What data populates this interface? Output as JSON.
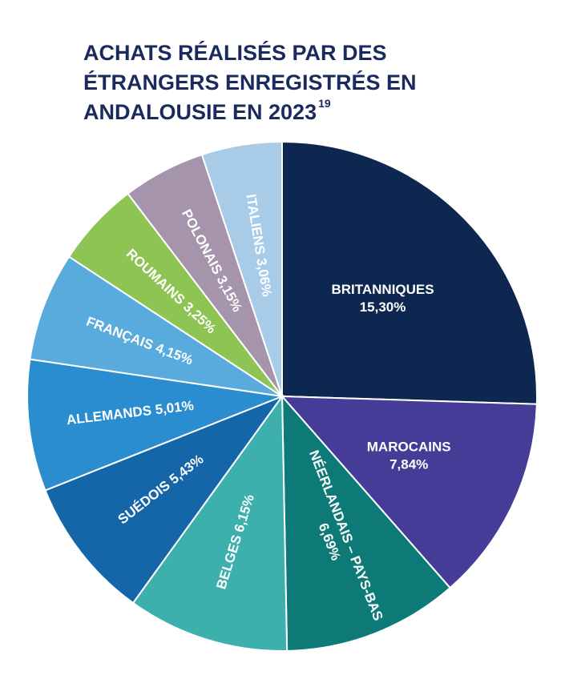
{
  "chart_data": {
    "type": "pie",
    "title": "ACHATS RÉALISÉS PAR DES ÉTRANGERS ENREGISTRÉS EN ANDALOUSIE EN 2023",
    "title_superscript": "19",
    "categories": [
      "BRITANNIQUES",
      "MAROCAINS",
      "NÉERLANDAIS – PAYS-BAS",
      "BELGES",
      "SUÉDOIS",
      "ALLEMANDS",
      "FRANÇAIS",
      "ROUMAINS",
      "POLONAIS",
      "ITALIENS"
    ],
    "values": [
      15.3,
      7.84,
      6.69,
      6.15,
      5.43,
      5.01,
      4.15,
      3.25,
      3.15,
      3.06
    ],
    "value_labels": [
      "15,30%",
      "7,84%",
      "6,69%",
      "6,15%",
      "5,43%",
      "5,01%",
      "4,15%",
      "3,25%",
      "3,15%",
      "3,06%"
    ],
    "colors": [
      "#0d2750",
      "#443c97",
      "#0e7a78",
      "#3db0ad",
      "#1466a8",
      "#2a8dd0",
      "#58abdc",
      "#8dc453",
      "#a693ac",
      "#a8cbe8"
    ]
  }
}
